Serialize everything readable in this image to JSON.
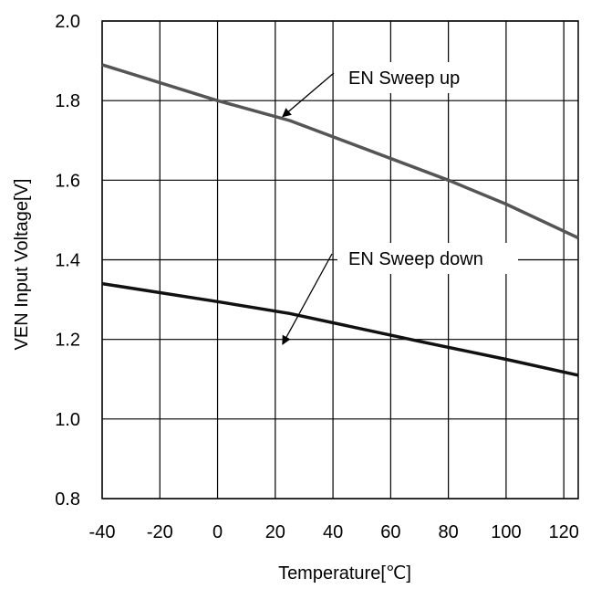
{
  "chart_data": {
    "type": "line",
    "title": "",
    "xlabel": "Temperature[℃]",
    "ylabel": "VEN Input Voltage[V]",
    "xlim": [
      -40,
      125
    ],
    "ylim": [
      0.8,
      2.0
    ],
    "x_ticks": [
      -40,
      -20,
      0,
      20,
      40,
      60,
      80,
      100,
      120
    ],
    "x_tick_labels": [
      "-40",
      "-20",
      "0",
      "20",
      "40",
      "60",
      "80",
      "100",
      "120"
    ],
    "y_ticks": [
      0.8,
      1.0,
      1.2,
      1.4,
      1.6,
      1.8,
      2.0
    ],
    "y_tick_labels": [
      "0.8",
      "1.0",
      "1.2",
      "1.4",
      "1.6",
      "1.8",
      "2.0"
    ],
    "grid": true,
    "legend": "none",
    "series": [
      {
        "name": "EN Sweep up",
        "color": "#555555",
        "x": [
          -40,
          0,
          25,
          80,
          100,
          125
        ],
        "y": [
          1.89,
          1.8,
          1.75,
          1.6,
          1.54,
          1.455
        ]
      },
      {
        "name": "EN Sweep down",
        "color": "#111111",
        "x": [
          -40,
          0,
          25,
          70,
          100,
          125
        ],
        "y": [
          1.34,
          1.295,
          1.265,
          1.195,
          1.15,
          1.11
        ]
      }
    ],
    "annotations": [
      {
        "text": "EN Sweep up",
        "points_to": {
          "x": 20,
          "y": 1.755
        }
      },
      {
        "text": "EN Sweep down",
        "points_to": {
          "x": 20,
          "y": 1.275
        }
      }
    ]
  }
}
